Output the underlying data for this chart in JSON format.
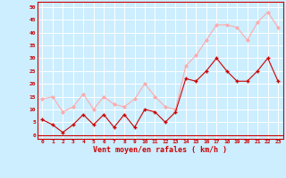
{
  "x": [
    0,
    1,
    2,
    3,
    4,
    5,
    6,
    7,
    8,
    9,
    10,
    11,
    12,
    13,
    14,
    15,
    16,
    17,
    18,
    19,
    20,
    21,
    22,
    23
  ],
  "avg_wind": [
    6,
    4,
    1,
    4,
    8,
    4,
    8,
    3,
    8,
    3,
    10,
    9,
    5,
    9,
    22,
    21,
    25,
    30,
    25,
    21,
    21,
    25,
    30,
    21
  ],
  "gust_wind": [
    14,
    15,
    9,
    11,
    16,
    10,
    15,
    12,
    11,
    14,
    20,
    15,
    11,
    10,
    27,
    31,
    37,
    43,
    43,
    42,
    37,
    44,
    48,
    42
  ],
  "avg_color": "#cc0000",
  "gust_color": "#ffaaaa",
  "bg_color": "#cceeff",
  "grid_color": "#ffffff",
  "xlabel": "Vent moyen/en rafales ( km/h )",
  "yticks": [
    0,
    5,
    10,
    15,
    20,
    25,
    30,
    35,
    40,
    45,
    50
  ],
  "xticks": [
    0,
    1,
    2,
    3,
    4,
    5,
    6,
    7,
    8,
    9,
    10,
    11,
    12,
    13,
    14,
    15,
    16,
    17,
    18,
    19,
    20,
    21,
    22,
    23
  ],
  "ylim": [
    -1.5,
    52
  ],
  "xlim": [
    -0.5,
    23.5
  ]
}
